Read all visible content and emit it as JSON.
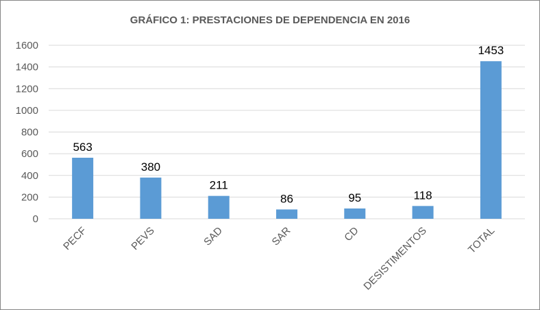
{
  "chart_data": {
    "type": "bar",
    "title": "GRÁFICO 1: PRESTACIONES DE DEPENDENCIA EN 2016",
    "categories": [
      "PECF",
      "PEVS",
      "SAD",
      "SAR",
      "CD",
      "DESISTIMENTOS",
      "TOTAL"
    ],
    "values": [
      563,
      380,
      211,
      86,
      95,
      118,
      1453
    ],
    "data_labels": [
      "563",
      "380",
      "211",
      "86",
      "95",
      "118",
      "1453"
    ],
    "xlabel": "",
    "ylabel": "",
    "ylim": [
      0,
      1600
    ],
    "yticks": [
      "0",
      "200",
      "400",
      "600",
      "800",
      "1000",
      "1200",
      "1400",
      "1600"
    ],
    "grid": true,
    "bar_color": "#5B9BD5"
  }
}
